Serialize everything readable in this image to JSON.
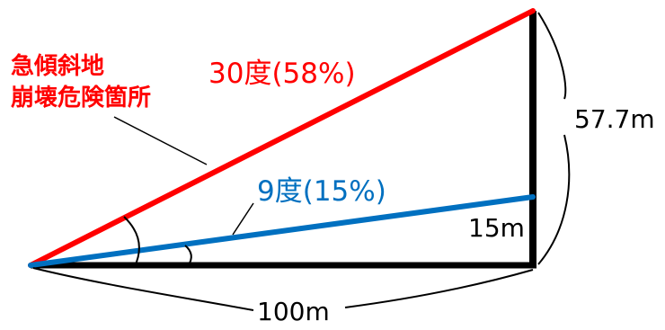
{
  "colors": {
    "steep": "#ff0000",
    "gentle": "#0070c0",
    "frame": "#000000",
    "background": "#ffffff"
  },
  "labels": {
    "steep_angle": "30度(58%)",
    "gentle_angle": "9度(15%)",
    "steep_height": "57.7m",
    "gentle_height": "15m",
    "base_length": "100m",
    "hazard_line1": "急傾斜地",
    "hazard_line2": "崩壊危険箇所"
  }
}
